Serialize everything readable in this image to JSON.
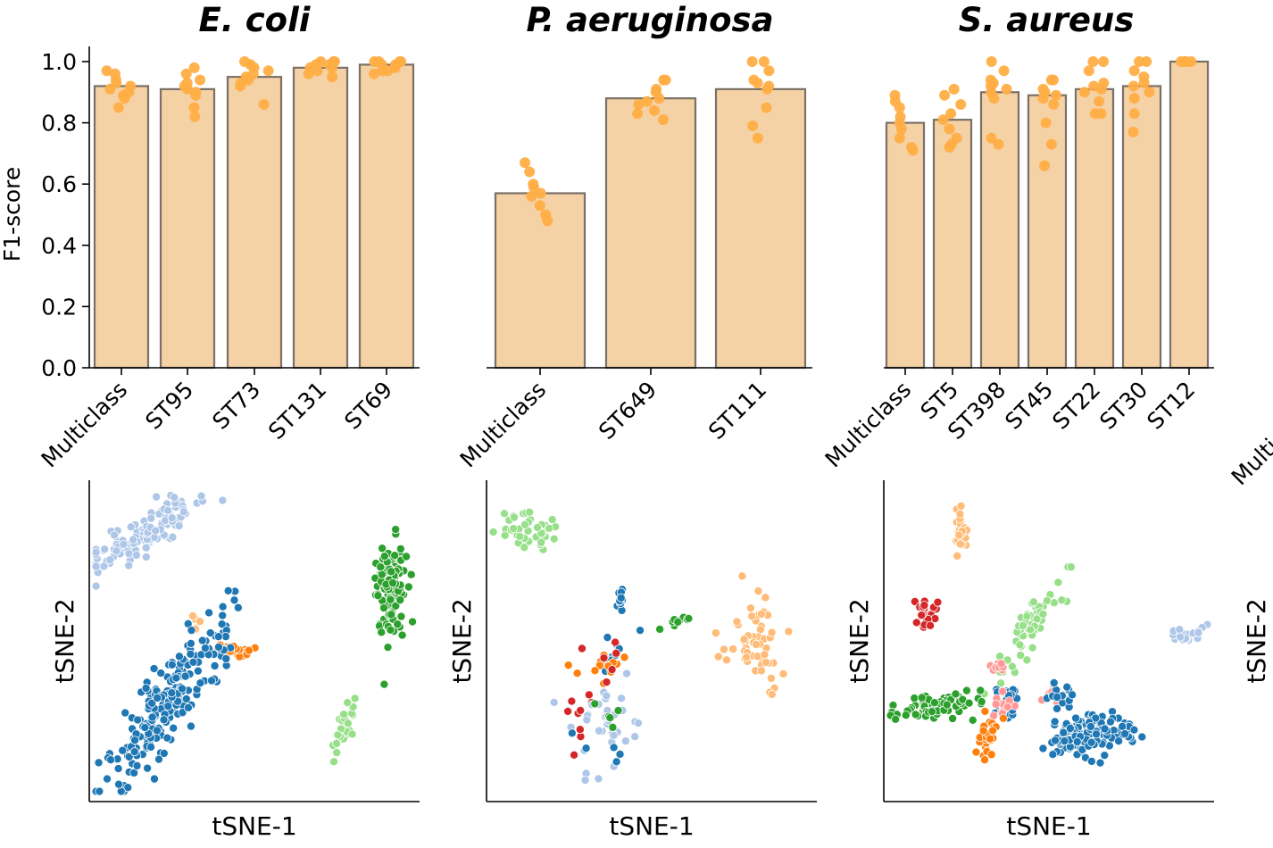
{
  "chart_data": [
    {
      "type": "bar",
      "title": "E. coli",
      "ylabel": "F1-score",
      "ylim": [
        0,
        1.05
      ],
      "yticks": [
        "0.0",
        "0.2",
        "0.4",
        "0.6",
        "0.8",
        "1.0"
      ],
      "categories": [
        "Multiclass",
        "ST95",
        "ST73",
        "ST131",
        "ST69"
      ],
      "values": [
        0.92,
        0.91,
        0.95,
        0.98,
        0.99
      ],
      "points": [
        [
          0.97,
          0.96,
          0.94,
          0.93,
          0.92,
          0.91,
          0.9,
          0.89,
          0.88,
          0.85
        ],
        [
          0.98,
          0.96,
          0.94,
          0.93,
          0.92,
          0.91,
          0.9,
          0.89,
          0.85,
          0.82
        ],
        [
          1.0,
          0.99,
          0.98,
          0.97,
          0.96,
          0.95,
          0.94,
          0.93,
          0.92,
          0.86
        ],
        [
          1.0,
          1.0,
          1.0,
          0.99,
          0.99,
          0.98,
          0.98,
          0.97,
          0.96,
          0.95
        ],
        [
          1.0,
          1.0,
          1.0,
          1.0,
          0.99,
          0.99,
          0.98,
          0.97,
          0.97,
          0.96
        ]
      ]
    },
    {
      "type": "bar",
      "title": "P. aeruginosa",
      "ylim": [
        0,
        1.05
      ],
      "categories": [
        "Multiclass",
        "ST649",
        "ST111"
      ],
      "values": [
        0.57,
        0.88,
        0.91
      ],
      "points": [
        [
          0.67,
          0.64,
          0.6,
          0.59,
          0.57,
          0.56,
          0.53,
          0.5,
          0.48
        ],
        [
          0.94,
          0.94,
          0.91,
          0.9,
          0.88,
          0.87,
          0.86,
          0.84,
          0.83,
          0.81
        ],
        [
          1.0,
          1.0,
          0.97,
          0.94,
          0.93,
          0.92,
          0.91,
          0.85,
          0.79,
          0.75
        ]
      ]
    },
    {
      "type": "bar",
      "title": "S. aureus",
      "ylim": [
        0,
        1.05
      ],
      "categories": [
        "Multiclass",
        "ST5",
        "ST398",
        "ST45",
        "ST22",
        "ST30",
        "ST12"
      ],
      "values": [
        0.8,
        0.81,
        0.9,
        0.89,
        0.91,
        0.92,
        1.0
      ],
      "points": [
        [
          0.89,
          0.87,
          0.85,
          0.82,
          0.8,
          0.78,
          0.75,
          0.72,
          0.71
        ],
        [
          0.91,
          0.89,
          0.86,
          0.83,
          0.81,
          0.78,
          0.75,
          0.73,
          0.72
        ],
        [
          1.0,
          0.97,
          0.94,
          0.93,
          0.92,
          0.91,
          0.9,
          0.88,
          0.75,
          0.73
        ],
        [
          0.94,
          0.94,
          0.91,
          0.9,
          0.89,
          0.88,
          0.86,
          0.8,
          0.73,
          0.66
        ],
        [
          1.0,
          1.0,
          0.97,
          0.93,
          0.92,
          0.91,
          0.9,
          0.87,
          0.83,
          0.83
        ],
        [
          1.0,
          1.0,
          0.97,
          0.95,
          0.93,
          0.92,
          0.9,
          0.88,
          0.83,
          0.77
        ],
        [
          1.0,
          1.0,
          1.0,
          1.0,
          1.0
        ]
      ]
    },
    {
      "type": "scatter",
      "xlabel": "tSNE-1",
      "ylabel": "tSNE-2",
      "xlim": [
        0,
        100
      ],
      "ylim": [
        0,
        100
      ],
      "clusters": [
        {
          "color": "#aec7e8",
          "n": 130,
          "cx": 15,
          "cy": 85,
          "sx": 3,
          "sy": 9,
          "angle": -58
        },
        {
          "color": "#2ca02c",
          "n": 110,
          "cx": 92,
          "cy": 67,
          "sx": 2.5,
          "sy": 9,
          "angle": 0
        },
        {
          "color": "#ffbb78",
          "n": 10,
          "cx": 32,
          "cy": 55,
          "sx": 1.2,
          "sy": 1.5,
          "angle": 0
        },
        {
          "color": "#ff7f0e",
          "n": 35,
          "cx": 42,
          "cy": 47,
          "sx": 3,
          "sy": 0.8,
          "angle": 0
        },
        {
          "color": "#1f77b4",
          "n": 220,
          "cx": 24,
          "cy": 30,
          "sx": 4,
          "sy": 17,
          "angle": -32
        },
        {
          "color": "#98df8a",
          "n": 30,
          "cx": 77,
          "cy": 21,
          "sx": 1.3,
          "sy": 5,
          "angle": -20
        }
      ]
    },
    {
      "type": "scatter",
      "xlabel": "tSNE-1",
      "ylabel": "tSNE-2",
      "xlim": [
        0,
        100
      ],
      "ylim": [
        0,
        100
      ],
      "clusters": [
        {
          "color": "#98df8a",
          "n": 40,
          "cx": 12,
          "cy": 86,
          "sx": 5,
          "sy": 4,
          "angle": -30
        },
        {
          "color": "#1f77b4",
          "n": 10,
          "cx": 41,
          "cy": 64,
          "sx": 0.8,
          "sy": 2,
          "angle": 0
        },
        {
          "color": "#2ca02c",
          "n": 10,
          "cx": 59,
          "cy": 57,
          "sx": 3,
          "sy": 0.8,
          "angle": 20
        },
        {
          "color": "#ffbb78",
          "n": 55,
          "cx": 83,
          "cy": 49,
          "sx": 5,
          "sy": 8,
          "angle": 0
        },
        {
          "color": "#1f77b4",
          "n": 10,
          "cx": 38,
          "cy": 46,
          "sx": 4,
          "sy": 4,
          "angle": 0
        },
        {
          "color": "#ff7f0e",
          "n": 15,
          "cx": 36,
          "cy": 43,
          "sx": 4,
          "sy": 3,
          "angle": 0
        },
        {
          "color": "#d62728",
          "n": 8,
          "cx": 36,
          "cy": 39,
          "sx": 5,
          "sy": 6,
          "angle": 0
        },
        {
          "color": "#aec7e8",
          "n": 35,
          "cx": 37,
          "cy": 21,
          "sx": 5,
          "sy": 8,
          "angle": 0
        },
        {
          "color": "#2ca02c",
          "n": 5,
          "cx": 38,
          "cy": 27,
          "sx": 4,
          "sy": 4,
          "angle": 0
        },
        {
          "color": "#d62728",
          "n": 7,
          "cx": 27,
          "cy": 22,
          "sx": 1.5,
          "sy": 8,
          "angle": 0
        },
        {
          "color": "#1f77b4",
          "n": 5,
          "cx": 34,
          "cy": 16,
          "sx": 4,
          "sy": 4,
          "angle": 0
        }
      ]
    },
    {
      "type": "scatter",
      "xlabel": "tSNE-1",
      "ylabel": "tSNE-2",
      "xlim": [
        0,
        100
      ],
      "ylim": [
        0,
        100
      ],
      "clusters": [
        {
          "color": "#ffbb78",
          "n": 25,
          "cx": 23,
          "cy": 87,
          "sx": 0.9,
          "sy": 4,
          "angle": 0
        },
        {
          "color": "#d62728",
          "n": 22,
          "cx": 12,
          "cy": 60,
          "sx": 2,
          "sy": 2.5,
          "angle": 0
        },
        {
          "color": "#98df8a",
          "n": 60,
          "cx": 44,
          "cy": 54,
          "sx": 2.5,
          "sy": 9,
          "angle": -35
        },
        {
          "color": "#aec7e8",
          "n": 25,
          "cx": 93,
          "cy": 52,
          "sx": 4,
          "sy": 1.3,
          "angle": 15
        },
        {
          "color": "#ff9896",
          "n": 10,
          "cx": 34,
          "cy": 41,
          "sx": 1.2,
          "sy": 1.2,
          "angle": 0
        },
        {
          "color": "#2ca02c",
          "n": 70,
          "cx": 15,
          "cy": 29,
          "sx": 7,
          "sy": 2,
          "angle": 8
        },
        {
          "color": "#1f77b4",
          "n": 22,
          "cx": 37,
          "cy": 31,
          "sx": 2.2,
          "sy": 3,
          "angle": 0
        },
        {
          "color": "#ff9896",
          "n": 12,
          "cx": 36,
          "cy": 29,
          "sx": 2,
          "sy": 2,
          "angle": 0
        },
        {
          "color": "#ff9896",
          "n": 8,
          "cx": 51,
          "cy": 32,
          "sx": 2,
          "sy": 1.5,
          "angle": 0
        },
        {
          "color": "#1f77b4",
          "n": 15,
          "cx": 54,
          "cy": 32,
          "sx": 2,
          "sy": 2,
          "angle": 0
        },
        {
          "color": "#ff7f0e",
          "n": 30,
          "cx": 31,
          "cy": 17,
          "sx": 2,
          "sy": 4.5,
          "angle": -15
        },
        {
          "color": "#1f77b4",
          "n": 150,
          "cx": 62,
          "cy": 19,
          "sx": 7,
          "sy": 3.5,
          "angle": 10
        }
      ]
    }
  ],
  "clipped_right": {
    "ylabel": "tSNE-2",
    "tick": "Multic"
  }
}
